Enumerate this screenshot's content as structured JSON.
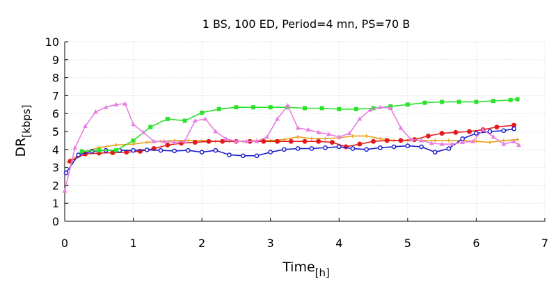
{
  "chart_data": {
    "type": "line",
    "title": "1 BS, 100 ED, Period=4 mn, PS=70 B",
    "xlabel": "Time",
    "xlabel_sub": "[h]",
    "ylabel": "DR",
    "ylabel_sub": "[kbps]",
    "xlim": [
      0,
      7
    ],
    "ylim": [
      0,
      10
    ],
    "xticks": [
      "0",
      "1",
      "2",
      "3",
      "4",
      "5",
      "6",
      "7"
    ],
    "yticks": [
      "0",
      "1",
      "2",
      "3",
      "4",
      "5",
      "6",
      "7",
      "8",
      "9",
      "10"
    ],
    "grid": true,
    "legend": "none",
    "series": [
      {
        "color": "#e6a117",
        "marker": "plus",
        "x": [
          0.05,
          0.25,
          0.5,
          0.75,
          1.0,
          1.2,
          1.4,
          1.6,
          1.8,
          2.0,
          2.2,
          2.4,
          2.6,
          2.8,
          3.0,
          3.2,
          3.4,
          3.6,
          3.8,
          4.0,
          4.2,
          4.4,
          4.6,
          4.8,
          5.0,
          5.2,
          5.4,
          5.6,
          5.8,
          6.0,
          6.2,
          6.4,
          6.6
        ],
        "y": [
          3.3,
          3.85,
          4.1,
          4.25,
          4.3,
          4.4,
          4.45,
          4.5,
          4.5,
          4.5,
          4.45,
          4.45,
          4.45,
          4.5,
          4.5,
          4.55,
          4.7,
          4.6,
          4.6,
          4.65,
          4.75,
          4.75,
          4.6,
          4.5,
          4.5,
          4.5,
          4.5,
          4.5,
          4.5,
          4.45,
          4.4,
          4.5,
          4.55
        ]
      },
      {
        "color": "#e31a1c",
        "marker": "circle-filled",
        "x": [
          0.08,
          0.3,
          0.5,
          0.7,
          0.9,
          1.1,
          1.3,
          1.5,
          1.7,
          1.9,
          2.1,
          2.3,
          2.5,
          2.7,
          2.9,
          3.1,
          3.3,
          3.5,
          3.7,
          3.9,
          4.1,
          4.3,
          4.5,
          4.7,
          4.9,
          5.1,
          5.3,
          5.5,
          5.7,
          5.9,
          6.1,
          6.3,
          6.55
        ],
        "y": [
          3.35,
          3.75,
          3.8,
          3.82,
          3.85,
          3.9,
          4.05,
          4.25,
          4.35,
          4.4,
          4.45,
          4.45,
          4.45,
          4.45,
          4.45,
          4.45,
          4.45,
          4.45,
          4.45,
          4.4,
          4.15,
          4.3,
          4.45,
          4.5,
          4.5,
          4.55,
          4.75,
          4.9,
          4.95,
          5.0,
          5.1,
          5.25,
          5.35
        ]
      },
      {
        "color": "#1c1fcc",
        "marker": "circle-open",
        "x": [
          0.02,
          0.2,
          0.4,
          0.6,
          0.8,
          1.0,
          1.2,
          1.4,
          1.6,
          1.8,
          2.0,
          2.2,
          2.4,
          2.6,
          2.8,
          3.0,
          3.2,
          3.4,
          3.6,
          3.8,
          4.0,
          4.2,
          4.4,
          4.6,
          4.8,
          5.0,
          5.2,
          5.4,
          5.6,
          5.8,
          6.0,
          6.2,
          6.4,
          6.55
        ],
        "y": [
          2.7,
          3.7,
          3.9,
          3.95,
          3.95,
          3.95,
          3.98,
          3.95,
          3.92,
          3.95,
          3.85,
          3.95,
          3.7,
          3.65,
          3.65,
          3.85,
          4.0,
          4.05,
          4.05,
          4.1,
          4.15,
          4.05,
          4.0,
          4.1,
          4.15,
          4.2,
          4.15,
          3.85,
          4.05,
          4.6,
          4.9,
          5.0,
          5.05,
          5.15
        ]
      },
      {
        "color": "#2be32b",
        "marker": "square",
        "x": [
          0.25,
          0.5,
          0.75,
          1.0,
          1.25,
          1.5,
          1.75,
          2.0,
          2.25,
          2.5,
          2.75,
          3.0,
          3.25,
          3.5,
          3.75,
          4.0,
          4.25,
          4.5,
          4.75,
          5.0,
          5.25,
          5.5,
          5.75,
          6.0,
          6.25,
          6.5,
          6.6
        ],
        "y": [
          3.9,
          3.95,
          3.95,
          4.5,
          5.25,
          5.7,
          5.6,
          6.05,
          6.25,
          6.35,
          6.35,
          6.35,
          6.35,
          6.3,
          6.3,
          6.25,
          6.25,
          6.3,
          6.4,
          6.5,
          6.6,
          6.65,
          6.65,
          6.65,
          6.7,
          6.75,
          6.8
        ]
      },
      {
        "color": "#e77ee0",
        "marker": "triangle",
        "x": [
          0.0,
          0.15,
          0.3,
          0.45,
          0.6,
          0.75,
          0.88,
          1.0,
          1.15,
          1.3,
          1.45,
          1.6,
          1.75,
          1.9,
          2.05,
          2.2,
          2.35,
          2.5,
          2.65,
          2.8,
          2.95,
          3.1,
          3.25,
          3.4,
          3.55,
          3.7,
          3.85,
          4.0,
          4.15,
          4.3,
          4.45,
          4.6,
          4.75,
          4.9,
          5.05,
          5.2,
          5.35,
          5.5,
          5.65,
          5.8,
          5.95,
          6.1,
          6.25,
          6.4,
          6.55,
          6.62
        ],
        "y": [
          1.7,
          4.1,
          5.3,
          6.1,
          6.35,
          6.5,
          6.55,
          5.4,
          4.95,
          4.45,
          4.45,
          4.4,
          4.45,
          5.6,
          5.7,
          5.0,
          4.6,
          4.45,
          4.45,
          4.45,
          4.7,
          5.7,
          6.45,
          5.2,
          5.1,
          4.95,
          4.85,
          4.7,
          4.9,
          5.7,
          6.2,
          6.35,
          6.3,
          5.2,
          4.55,
          4.5,
          4.35,
          4.3,
          4.3,
          4.4,
          4.45,
          5.1,
          4.7,
          4.3,
          4.45,
          4.25
        ]
      }
    ]
  }
}
